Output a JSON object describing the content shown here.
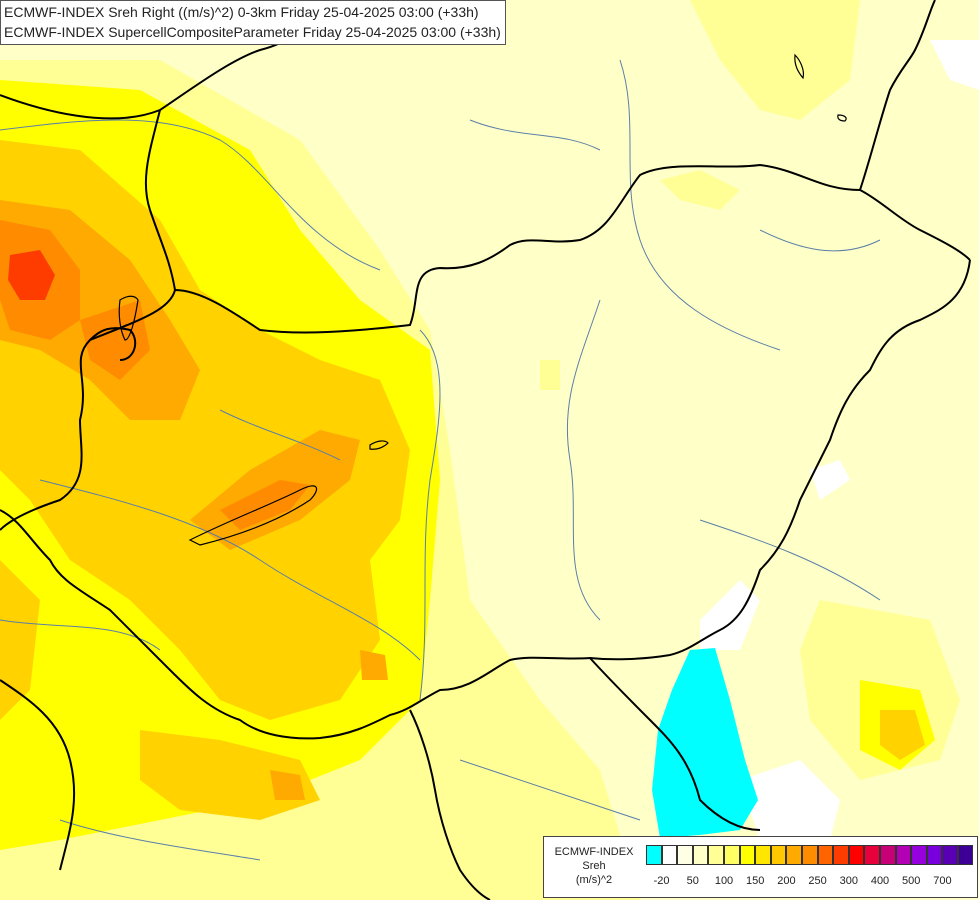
{
  "header": {
    "line1": "ECMWF-INDEX Sreh Right ((m/s)^2) 0-3km Friday 25-04-2025 03:00 (+33h)",
    "line2": "ECMWF-INDEX SupercellCompositeParameter Friday 25-04-2025 03:00 (+33h)"
  },
  "legend": {
    "title": [
      "ECMWF-INDEX",
      "Sreh",
      "(m/s)^2"
    ],
    "swatch_colors": [
      "#00ffff",
      "#ffffff",
      "#ffffe6",
      "#ffffc8",
      "#ffff96",
      "#ffff64",
      "#ffff00",
      "#ffe600",
      "#ffc800",
      "#ffaa00",
      "#ff8c00",
      "#ff6400",
      "#ff3c00",
      "#ff0000",
      "#e6003c",
      "#c80078",
      "#b400b4",
      "#9600dc",
      "#7800dc",
      "#5a00b4",
      "#3c0096"
    ],
    "tick_labels": [
      "-20",
      "50",
      "100",
      "150",
      "200",
      "250",
      "300",
      "400",
      "500",
      "700"
    ]
  },
  "map": {
    "description_colors": {
      "base": "#ffffc8",
      "light": "#ffff96",
      "mid": "#ffff00",
      "warm": "#ffc800",
      "orange": "#ffaa00",
      "deep": "#ff8c00",
      "hot": "#ff3c00",
      "cyan": "#00ffff",
      "white": "#ffffff",
      "border": "#000000",
      "river": "#5a7fa8"
    }
  }
}
